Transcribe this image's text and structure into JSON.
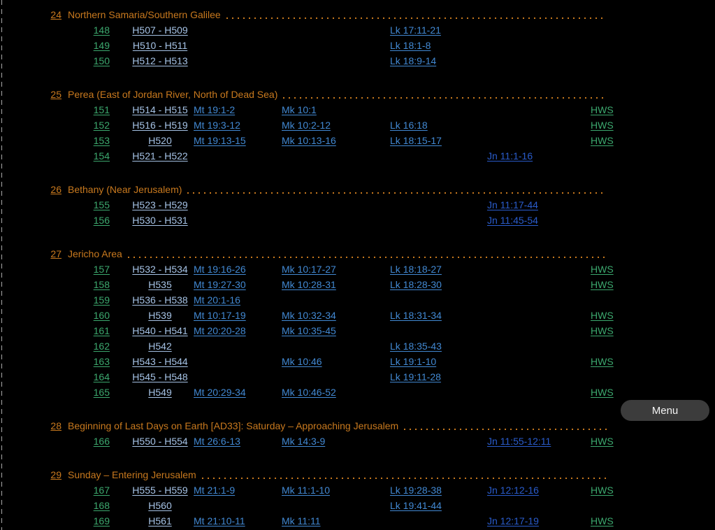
{
  "menu": {
    "label": "Menu"
  },
  "colors": {
    "background": "#000000",
    "section_orange": "#c8791e",
    "row_number_green": "#3ca86e",
    "harmony_ref_steel_blue": "#a6c3e6",
    "synoptic_ref_blue": "#4289d3",
    "john_ref_royal_blue": "#2a5ccc",
    "hws_green": "#3ca86e",
    "menu_button_bg": "#3c3c3c",
    "dashed_border_gray": "#a9a9a9"
  },
  "sections": [
    {
      "number": "24",
      "title": "Northern Samaria/Southern Galilee",
      "rows": [
        {
          "num": "148",
          "h": "H507 - H509",
          "mt": "",
          "mk": "",
          "lk": "Lk 17:11-21",
          "jn": "",
          "hws": ""
        },
        {
          "num": "149",
          "h": "H510 - H511",
          "mt": "",
          "mk": "",
          "lk": "Lk 18:1-8",
          "jn": "",
          "hws": ""
        },
        {
          "num": "150",
          "h": "H512 - H513",
          "mt": "",
          "mk": "",
          "lk": "Lk 18:9-14",
          "jn": "",
          "hws": ""
        }
      ]
    },
    {
      "number": "25",
      "title": "Perea (East of Jordan River, North of Dead Sea)",
      "rows": [
        {
          "num": "151",
          "h": "H514 - H515",
          "mt": "Mt 19:1-2",
          "mk": "Mk 10:1",
          "lk": "",
          "jn": "",
          "hws": "HWS"
        },
        {
          "num": "152",
          "h": "H516 - H519",
          "mt": "Mt 19:3-12",
          "mk": "Mk 10:2-12",
          "lk": "Lk 16:18",
          "jn": "",
          "hws": "HWS"
        },
        {
          "num": "153",
          "h": "H520",
          "mt": "Mt 19:13-15",
          "mk": "Mk 10:13-16",
          "lk": "Lk 18:15-17",
          "jn": "",
          "hws": "HWS"
        },
        {
          "num": "154",
          "h": "H521 - H522",
          "mt": "",
          "mk": "",
          "lk": "",
          "jn": "Jn 11:1-16",
          "hws": ""
        }
      ]
    },
    {
      "number": "26",
      "title": "Bethany (Near Jerusalem)",
      "rows": [
        {
          "num": "155",
          "h": "H523 - H529",
          "mt": "",
          "mk": "",
          "lk": "",
          "jn": "Jn 11:17-44",
          "hws": ""
        },
        {
          "num": "156",
          "h": "H530 - H531",
          "mt": "",
          "mk": "",
          "lk": "",
          "jn": "Jn 11:45-54",
          "hws": ""
        }
      ]
    },
    {
      "number": "27",
      "title": "Jericho Area",
      "rows": [
        {
          "num": "157",
          "h": "H532 - H534",
          "mt": "Mt 19:16-26",
          "mk": "Mk 10:17-27",
          "lk": "Lk 18:18-27",
          "jn": "",
          "hws": "HWS"
        },
        {
          "num": "158",
          "h": "H535",
          "mt": "Mt 19:27-30",
          "mk": "Mk 10:28-31",
          "lk": "Lk 18:28-30",
          "jn": "",
          "hws": "HWS"
        },
        {
          "num": "159",
          "h": "H536 - H538",
          "mt": "Mt 20:1-16",
          "mk": "",
          "lk": "",
          "jn": "",
          "hws": ""
        },
        {
          "num": "160",
          "h": "H539",
          "mt": "Mt 10:17-19",
          "mk": "Mk 10:32-34",
          "lk": "Lk 18:31-34",
          "jn": "",
          "hws": "HWS"
        },
        {
          "num": "161",
          "h": "H540 - H541",
          "mt": "Mt 20:20-28",
          "mk": "Mk 10:35-45",
          "lk": "",
          "jn": "",
          "hws": "HWS"
        },
        {
          "num": "162",
          "h": "H542",
          "mt": "",
          "mk": "",
          "lk": "Lk 18:35-43",
          "jn": "",
          "hws": ""
        },
        {
          "num": "163",
          "h": "H543 - H544",
          "mt": "",
          "mk": "Mk 10:46",
          "lk": "Lk 19:1-10",
          "jn": "",
          "hws": "HWS"
        },
        {
          "num": "164",
          "h": "H545 - H548",
          "mt": "",
          "mk": "",
          "lk": "Lk 19:11-28",
          "jn": "",
          "hws": ""
        },
        {
          "num": "165",
          "h": "H549",
          "mt": "Mt 20:29-34",
          "mk": "Mk 10:46-52",
          "lk": "",
          "jn": "",
          "hws": "HWS"
        }
      ]
    },
    {
      "number": "28",
      "title": "Beginning of Last Days on Earth [AD33]: Saturday – Approaching Jerusalem",
      "rows": [
        {
          "num": "166",
          "h": "H550 - H554",
          "mt": "Mt 26:6-13",
          "mk": "Mk 14:3-9",
          "lk": "",
          "jn": "Jn 11:55-12:11",
          "hws": "HWS"
        }
      ]
    },
    {
      "number": "29",
      "title": "Sunday – Entering Jerusalem",
      "rows": [
        {
          "num": "167",
          "h": "H555 - H559",
          "mt": "Mt 21:1-9",
          "mk": "Mk 11:1-10",
          "lk": "Lk 19:28-38",
          "jn": "Jn 12:12-16",
          "hws": "HWS"
        },
        {
          "num": "168",
          "h": "H560",
          "mt": "",
          "mk": "",
          "lk": "Lk 19:41-44",
          "jn": "",
          "hws": ""
        },
        {
          "num": "169",
          "h": "H561",
          "mt": "Mt 21:10-11",
          "mk": "Mk 11:11",
          "lk": "",
          "jn": "Jn 12:17-19",
          "hws": "HWS"
        }
      ]
    }
  ]
}
